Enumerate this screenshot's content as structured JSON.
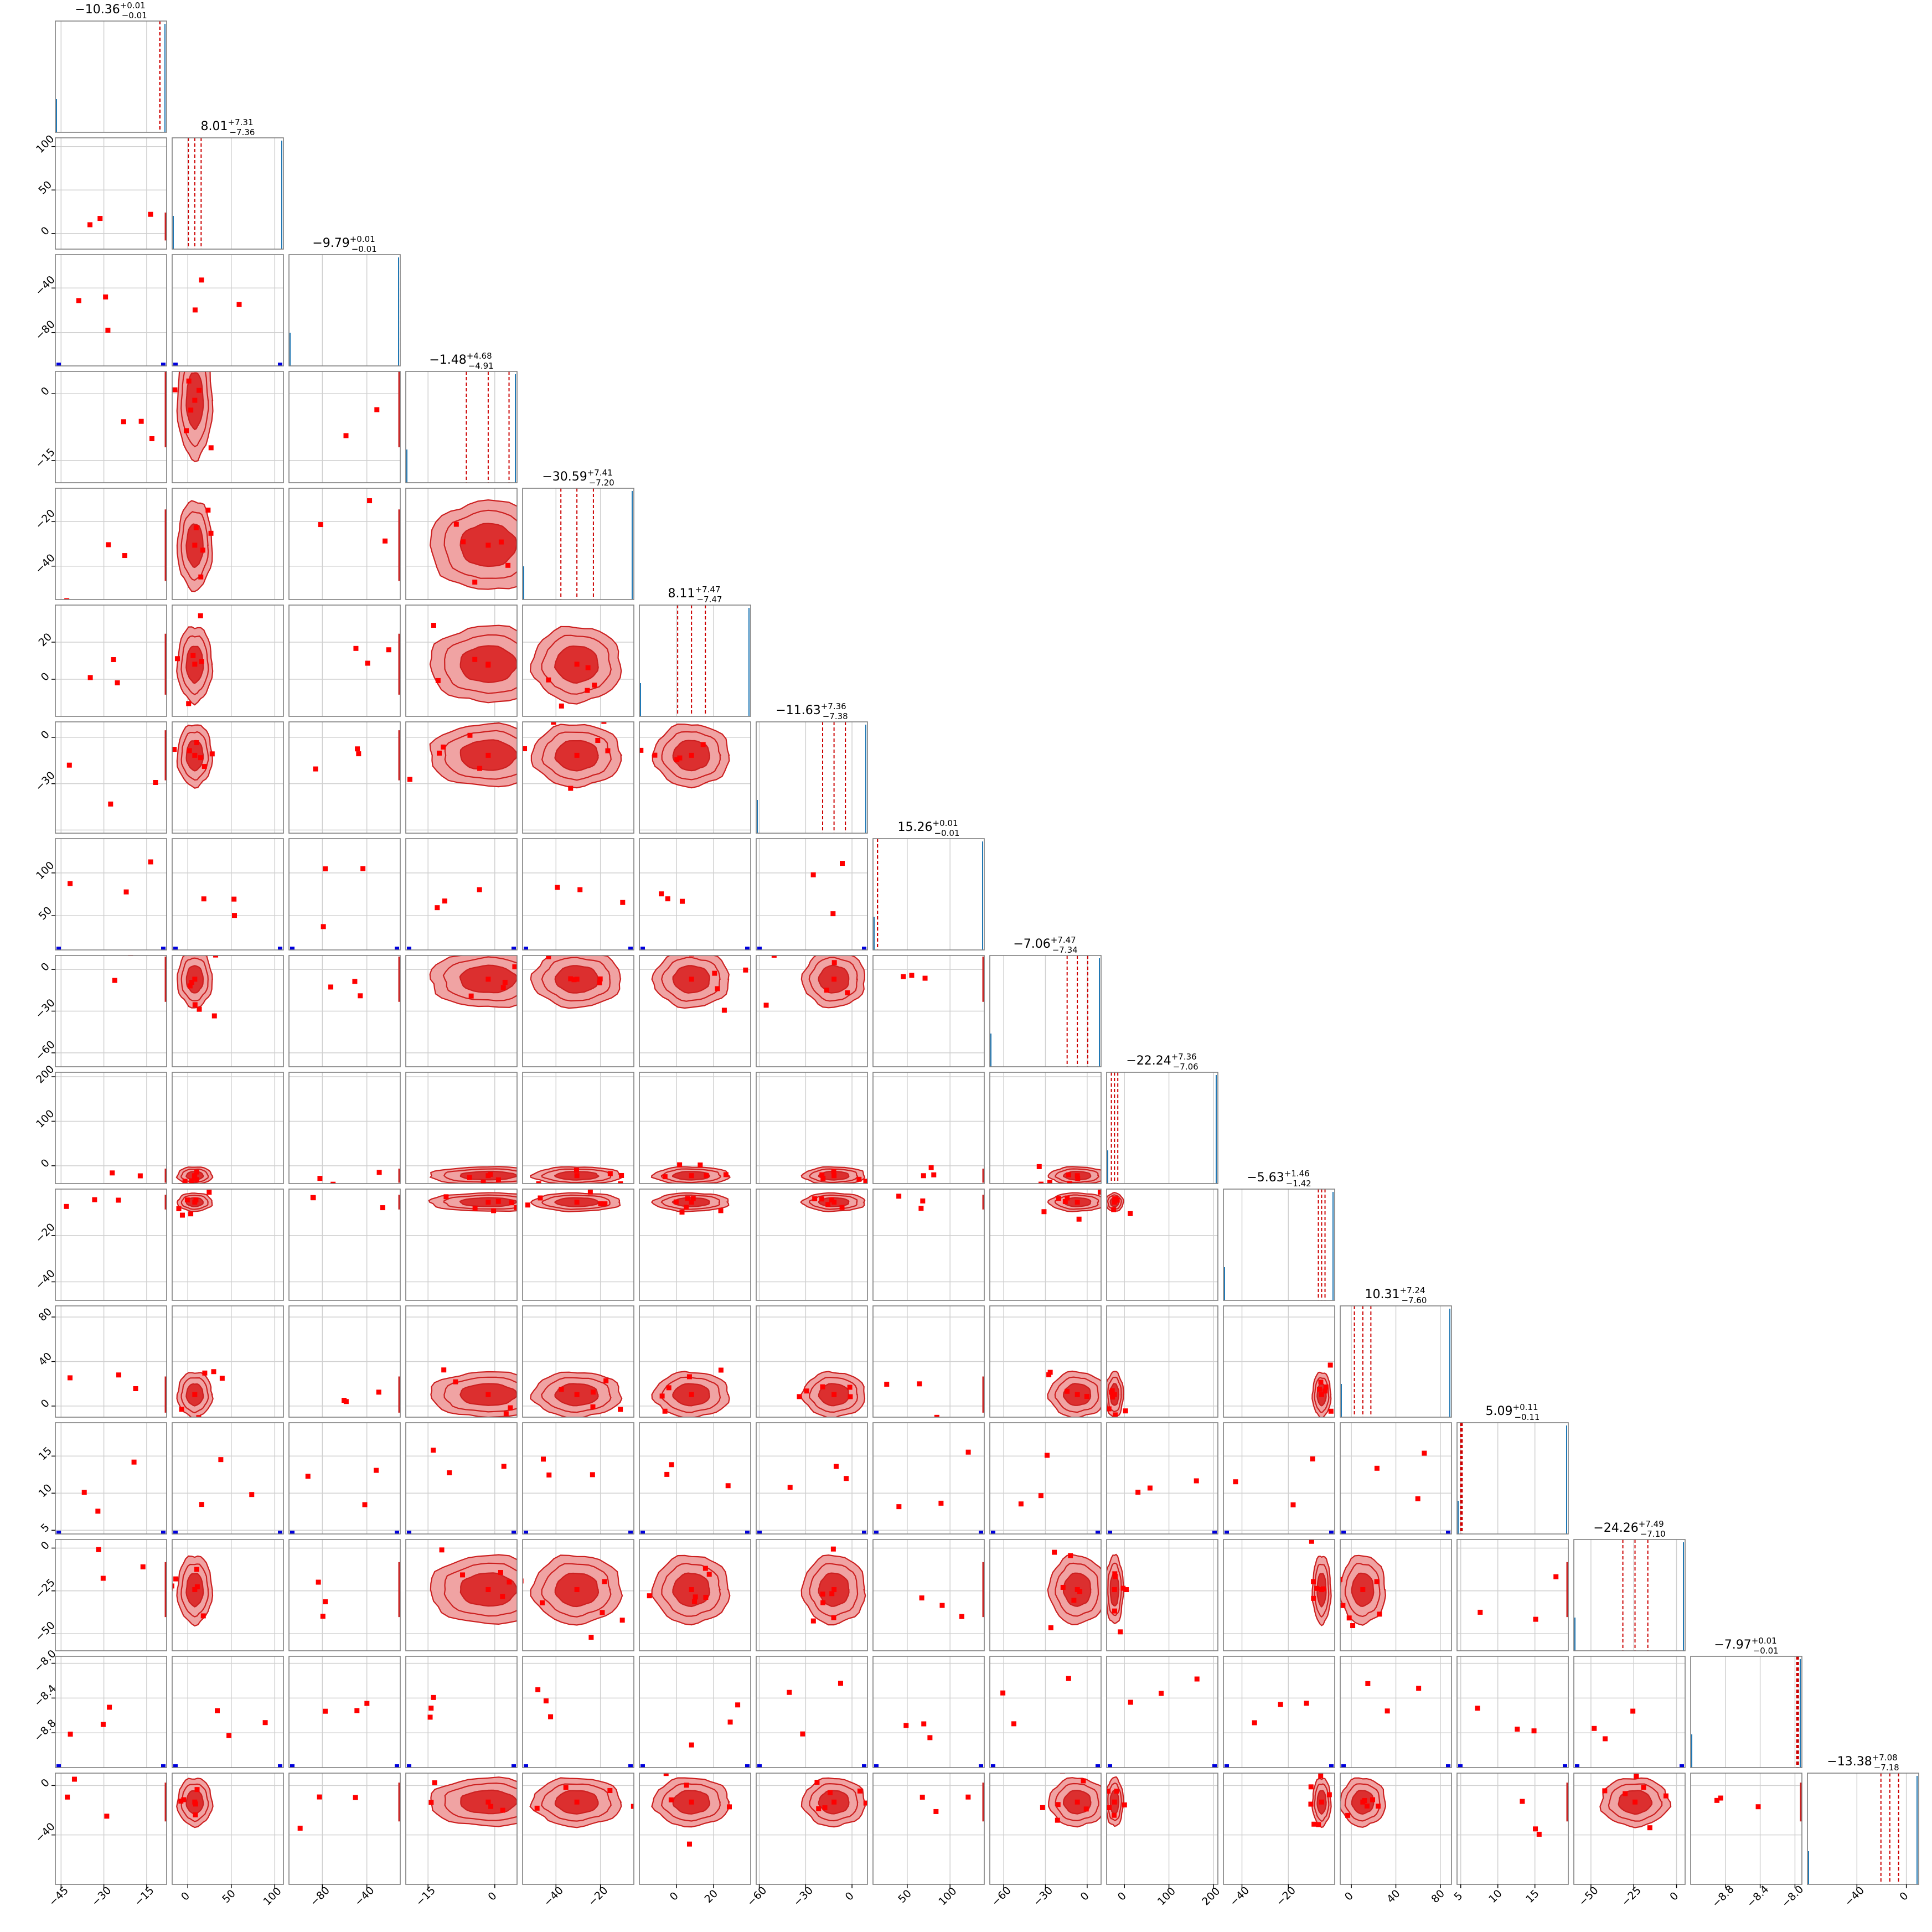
{
  "chart_data": {
    "type": "corner",
    "n_params": 16,
    "titles": [
      {
        "median": "−10.36",
        "plus": "+0.01",
        "minus": "−0.01"
      },
      {
        "median": "8.01",
        "plus": "+7.31",
        "minus": "−7.36"
      },
      {
        "median": "−9.79",
        "plus": "+0.01",
        "minus": "−0.01"
      },
      {
        "median": "−1.48",
        "plus": "+4.68",
        "minus": "−4.91"
      },
      {
        "median": "−30.59",
        "plus": "+7.41",
        "minus": "−7.20"
      },
      {
        "median": "8.11",
        "plus": "+7.47",
        "minus": "−7.47"
      },
      {
        "median": "−11.63",
        "plus": "+7.36",
        "minus": "−7.38"
      },
      {
        "median": "15.26",
        "plus": "+0.01",
        "minus": "−0.01"
      },
      {
        "median": "−7.06",
        "plus": "+7.47",
        "minus": "−7.34"
      },
      {
        "median": "−22.24",
        "plus": "+7.36",
        "minus": "−7.06"
      },
      {
        "median": "−5.63",
        "plus": "+1.46",
        "minus": "−1.42"
      },
      {
        "median": "10.31",
        "plus": "+7.24",
        "minus": "−7.60"
      },
      {
        "median": "5.09",
        "plus": "+0.11",
        "minus": "−0.11"
      },
      {
        "median": "−24.26",
        "plus": "+7.49",
        "minus": "−7.10"
      },
      {
        "median": "−7.97",
        "plus": "+0.01",
        "minus": "−0.01"
      },
      {
        "median": "−13.38",
        "plus": "+7.08",
        "minus": "−7.18"
      }
    ],
    "ranges": [
      [
        -47,
        -8
      ],
      [
        -18,
        110
      ],
      [
        -110,
        -10
      ],
      [
        -20,
        5
      ],
      [
        -55,
        -5
      ],
      [
        -20,
        40
      ],
      [
        -62,
        10
      ],
      [
        10,
        140
      ],
      [
        -70,
        10
      ],
      [
        -40,
        210
      ],
      [
        -48,
        0
      ],
      [
        -10,
        90
      ],
      [
        4.5,
        19.5
      ],
      [
        -60,
        5
      ],
      [
        -9.2,
        -7.92
      ],
      [
        -80,
        10
      ]
    ],
    "ticks": [
      [
        "−45",
        "−30",
        "−15"
      ],
      [
        "0",
        "50",
        "100"
      ],
      [
        "−80",
        "−40"
      ],
      [
        "−15",
        "0"
      ],
      [
        "−40",
        "−20"
      ],
      [
        "0",
        "20"
      ],
      [
        "−60",
        "−30",
        "0"
      ],
      [
        "50",
        "100"
      ],
      [
        "−60",
        "−30",
        "0"
      ],
      [
        "0",
        "100",
        "200"
      ],
      [
        "−40",
        "−20"
      ],
      [
        "0",
        "40",
        "80"
      ],
      [
        "5",
        "10",
        "15"
      ],
      [
        "−50",
        "−25",
        "0"
      ],
      [
        "−8.8",
        "−8.4",
        "−8.0"
      ],
      [
        "−80",
        "−40",
        "0"
      ]
    ],
    "tick_values": [
      [
        -45,
        -30,
        -15
      ],
      [
        0,
        50,
        100
      ],
      [
        -80,
        -40
      ],
      [
        -15,
        0
      ],
      [
        -40,
        -20
      ],
      [
        0,
        20
      ],
      [
        -60,
        -30,
        0
      ],
      [
        50,
        100
      ],
      [
        -60,
        -30,
        0
      ],
      [
        0,
        100,
        200
      ],
      [
        -40,
        -20
      ],
      [
        0,
        40,
        80
      ],
      [
        5,
        10,
        15
      ],
      [
        -50,
        -25,
        0
      ],
      [
        -8.8,
        -8.4,
        -8.0
      ],
      [
        -80,
        -40,
        0
      ]
    ],
    "posterior_center": [
      -10.36,
      8.01,
      -9.79,
      -1.48,
      -30.59,
      8.11,
      -11.63,
      15.26,
      -7.06,
      -22.24,
      -5.63,
      10.31,
      5.09,
      -24.26,
      -7.97,
      -13.38
    ],
    "posterior_sigma": [
      0.01,
      7.3,
      0.01,
      4.8,
      7.3,
      7.47,
      7.37,
      0.01,
      7.4,
      7.2,
      1.44,
      7.4,
      0.11,
      7.3,
      0.01,
      7.13
    ],
    "quantile_lines": [
      [
        -10.37,
        -10.36,
        -10.35
      ],
      [
        0.65,
        8.01,
        15.32
      ],
      [
        -9.8,
        -9.79,
        -9.78
      ],
      [
        -6.39,
        -1.48,
        3.2
      ],
      [
        -37.79,
        -30.59,
        -23.18
      ],
      [
        0.64,
        8.11,
        15.58
      ],
      [
        -19.01,
        -11.63,
        -4.27
      ],
      [
        15.25,
        15.26,
        15.27
      ],
      [
        -14.4,
        -7.06,
        0.41
      ],
      [
        -29.3,
        -22.24,
        -14.88
      ],
      [
        -7.05,
        -5.63,
        -4.17
      ],
      [
        2.71,
        10.31,
        17.55
      ],
      [
        4.98,
        5.09,
        5.2
      ],
      [
        -31.36,
        -24.26,
        -16.77
      ],
      [
        -7.98,
        -7.97,
        -7.96
      ],
      [
        -20.56,
        -13.38,
        -6.3
      ]
    ],
    "colors": {
      "fill_outer": "#f0a3a3",
      "fill_inner": "#dc2f2f",
      "contour": "#cc2020",
      "scatter": "#ff0000",
      "quantile": "#cc0000",
      "blue_marker": "#0000dd",
      "hist": "#1f77b4",
      "grid": "#d0d0d0",
      "frame": "#7f7f7f"
    },
    "grid": true
  }
}
